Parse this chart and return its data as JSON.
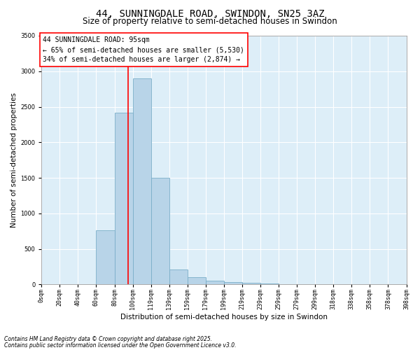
{
  "title": "44, SUNNINGDALE ROAD, SWINDON, SN25 3AZ",
  "subtitle": "Size of property relative to semi-detached houses in Swindon",
  "xlabel": "Distribution of semi-detached houses by size in Swindon",
  "ylabel": "Number of semi-detached properties",
  "bar_labels": [
    "0sqm",
    "20sqm",
    "40sqm",
    "60sqm",
    "80sqm",
    "100sqm",
    "119sqm",
    "139sqm",
    "159sqm",
    "179sqm",
    "199sqm",
    "219sqm",
    "239sqm",
    "259sqm",
    "279sqm",
    "299sqm",
    "318sqm",
    "338sqm",
    "358sqm",
    "378sqm",
    "398sqm"
  ],
  "bar_heights": [
    0,
    0,
    0,
    760,
    2420,
    2900,
    1500,
    210,
    100,
    50,
    30,
    20,
    10,
    5,
    3,
    2,
    1,
    1,
    0,
    0
  ],
  "bar_color": "#b8d4e8",
  "bar_edge_color": "#7aaec8",
  "ylim": [
    0,
    3500
  ],
  "yticks": [
    0,
    500,
    1000,
    1500,
    2000,
    2500,
    3000,
    3500
  ],
  "vline_x": 4.75,
  "vline_color": "red",
  "annotation_title": "44 SUNNINGDALE ROAD: 95sqm",
  "annotation_line1": "← 65% of semi-detached houses are smaller (5,530)",
  "annotation_line2": "34% of semi-detached houses are larger (2,874) →",
  "footnote1": "Contains HM Land Registry data © Crown copyright and database right 2025.",
  "footnote2": "Contains public sector information licensed under the Open Government Licence v3.0.",
  "title_fontsize": 10,
  "subtitle_fontsize": 8.5,
  "xlabel_fontsize": 7.5,
  "ylabel_fontsize": 7.5,
  "tick_fontsize": 6,
  "annotation_fontsize": 7,
  "footnote_fontsize": 5.5,
  "background_color": "#ddeef8"
}
